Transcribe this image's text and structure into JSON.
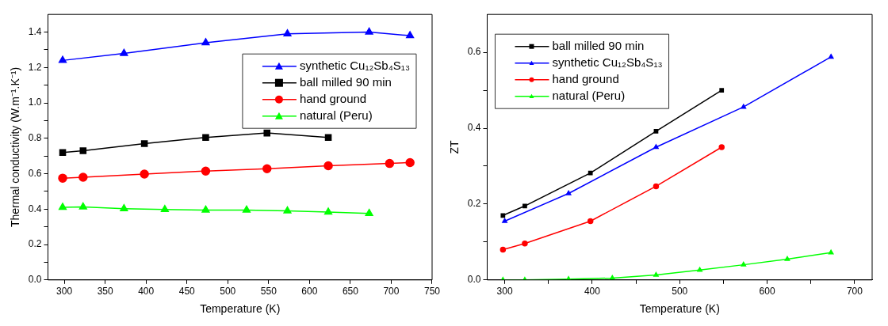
{
  "chart_data": [
    {
      "type": "line",
      "xlabel": "Temperature (K)",
      "ylabel": "Thermal conductivity (W.m⁻¹.K⁻¹)",
      "xlim": [
        280,
        750
      ],
      "xticks": [
        300,
        350,
        400,
        450,
        500,
        550,
        600,
        650,
        700,
        750
      ],
      "ylim": [
        0,
        1.5
      ],
      "yticks": [
        {
          "value": 0,
          "label": "0.0"
        },
        {
          "value": 0.1,
          "label": null
        },
        0.2,
        {
          "value": 0.3,
          "label": null
        },
        0.4,
        {
          "value": 0.5,
          "label": null
        },
        0.6,
        {
          "value": 0.7,
          "label": null
        },
        0.8,
        {
          "value": 0.9,
          "label": null
        },
        {
          "value": 1,
          "label": "1.0"
        },
        {
          "value": 1.1,
          "label": null
        },
        1.2,
        {
          "value": 1.3,
          "label": null
        },
        1.4
      ],
      "grid": false,
      "legend": "top right",
      "series": [
        {
          "name": "synthetic Cu₁₂Sb₄S₁₃",
          "color": "#0000ff",
          "marker": "triangle",
          "x": [
            298,
            373,
            473,
            573,
            673,
            723
          ],
          "values": [
            1.24,
            1.28,
            1.34,
            1.39,
            1.4,
            1.38
          ]
        },
        {
          "name": "ball milled 90 min",
          "color": "#000000",
          "marker": "square",
          "x": [
            298,
            323,
            398,
            473,
            548,
            623
          ],
          "values": [
            0.72,
            0.73,
            0.77,
            0.805,
            0.83,
            0.805
          ]
        },
        {
          "name": "hand ground",
          "color": "#ff0000",
          "marker": "circle",
          "x": [
            298,
            323,
            398,
            473,
            548,
            623,
            698,
            723
          ],
          "values": [
            0.575,
            0.58,
            0.598,
            0.615,
            0.628,
            0.645,
            0.658,
            0.663
          ]
        },
        {
          "name": "natural (Peru)",
          "color": "#00ff00",
          "marker": "triangle",
          "x": [
            298,
            323,
            373,
            423,
            473,
            523,
            573,
            623,
            673
          ],
          "values": [
            0.41,
            0.412,
            0.403,
            0.398,
            0.395,
            0.395,
            0.39,
            0.383,
            0.376
          ]
        }
      ]
    },
    {
      "type": "line",
      "xlabel": "Temperature (K)",
      "ylabel": "ZT",
      "xlim": [
        280,
        720
      ],
      "xticks": [
        300,
        {
          "value": 350,
          "label": null
        },
        400,
        {
          "value": 450,
          "label": null
        },
        500,
        {
          "value": 550,
          "label": null
        },
        600,
        {
          "value": 650,
          "label": null
        },
        700
      ],
      "ylim": [
        0,
        0.7
      ],
      "yticks": [
        {
          "value": 0,
          "label": "0.0"
        },
        {
          "value": 0.1,
          "label": null
        },
        0.2,
        {
          "value": 0.3,
          "label": null
        },
        0.4,
        {
          "value": 0.5,
          "label": null
        },
        0.6
      ],
      "grid": false,
      "legend": "top left",
      "series": [
        {
          "name": "ball milled 90 min",
          "color": "#000000",
          "marker": "square",
          "x": [
            298,
            323,
            398,
            473,
            548
          ],
          "values": [
            0.17,
            0.195,
            0.282,
            0.392,
            0.5
          ]
        },
        {
          "name": "synthetic Cu₁₂Sb₄S₁₃",
          "color": "#0000ff",
          "marker": "triangle",
          "x": [
            300,
            373,
            473,
            573,
            673
          ],
          "values": [
            0.155,
            0.228,
            0.35,
            0.456,
            0.588
          ]
        },
        {
          "name": "hand ground",
          "color": "#ff0000",
          "marker": "circle",
          "x": [
            298,
            323,
            398,
            473,
            548
          ],
          "values": [
            0.08,
            0.096,
            0.155,
            0.247,
            0.35
          ]
        },
        {
          "name": "natural (Peru)",
          "color": "#00ff00",
          "marker": "triangle",
          "x": [
            298,
            323,
            373,
            423,
            473,
            523,
            573,
            623,
            673
          ],
          "values": [
            0,
            0,
            0.002,
            0.005,
            0.013,
            0.026,
            0.04,
            0.055,
            0.072
          ]
        }
      ]
    }
  ]
}
